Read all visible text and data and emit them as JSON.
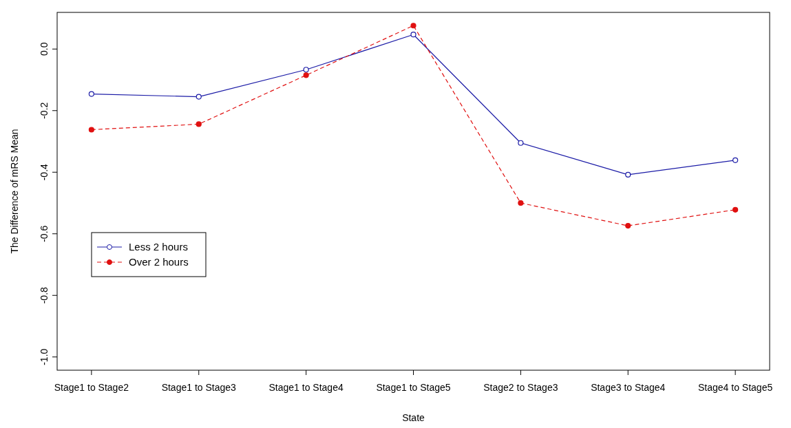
{
  "chart_data": {
    "type": "line",
    "xlabel": "State",
    "ylabel": "The Difference of mRS Mean",
    "categories": [
      "Stage1 to Stage2",
      "Stage1 to Stage3",
      "Stage1 to Stage4",
      "Stage1 to Stage5",
      "Stage2 to Stage3",
      "Stage3 to Stage4",
      "Stage4 to Stage5"
    ],
    "series": [
      {
        "name": "Less 2 hours",
        "color": "#1a1aa6",
        "line_style": "solid",
        "values": [
          -0.146,
          -0.155,
          -0.067,
          0.047,
          -0.305,
          -0.408,
          -0.361
        ]
      },
      {
        "name": "Over 2 hours",
        "color": "#e01010",
        "line_style": "dashed",
        "values": [
          -0.262,
          -0.244,
          -0.085,
          0.076,
          -0.5,
          -0.574,
          -0.522
        ]
      }
    ],
    "ylim": [
      -1.043,
      0.119
    ],
    "yticks": [
      {
        "value": -1,
        "label": "-1.0"
      },
      -0.8,
      -0.6,
      -0.4,
      -0.2,
      {
        "value": 0,
        "label": "0.0"
      }
    ],
    "marker": "circle",
    "grid": false,
    "legend": "left"
  }
}
